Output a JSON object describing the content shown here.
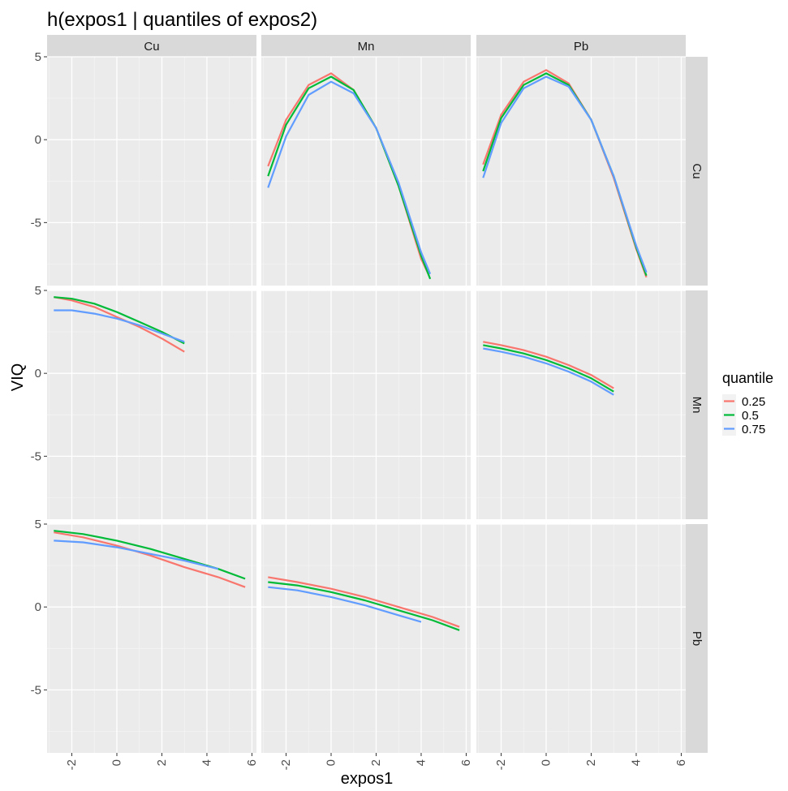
{
  "chart_data": {
    "type": "line",
    "title": "h(expos1 | quantiles of expos2)",
    "xlabel": "expos1",
    "ylabel": "VIQ",
    "xlim": [
      -3.1,
      6.2
    ],
    "ylim": [
      -8.8,
      5.0
    ],
    "x_ticks": [
      -2,
      0,
      2,
      4,
      6
    ],
    "x_tick_labels": [
      "-2",
      "0",
      "2",
      "4",
      "6"
    ],
    "y_ticks": [
      5,
      0,
      -5
    ],
    "y_tick_labels": [
      "5",
      "0",
      "-5"
    ],
    "column_labels": [
      "Cu",
      "Mn",
      "Pb"
    ],
    "row_labels": [
      "Cu",
      "Mn",
      "Pb"
    ],
    "grid": true,
    "legend": {
      "title": "quantile",
      "position": "right",
      "entries": [
        {
          "name": "0.25",
          "color": "#F8766D"
        },
        {
          "name": "0.5",
          "color": "#00BA38"
        },
        {
          "name": "0.75",
          "color": "#619CFF"
        }
      ]
    },
    "panels": [
      {
        "row": "Cu",
        "col": "Mn",
        "series": [
          {
            "name": "0.25",
            "color": "#F8766D",
            "x": [
              -2.8,
              -2.0,
              -1.0,
              0.0,
              1.0,
              2.0,
              3.0,
              4.0,
              4.35
            ],
            "y": [
              -1.6,
              1.2,
              3.3,
              4.0,
              3.0,
              0.7,
              -2.8,
              -7.2,
              -8.2
            ]
          },
          {
            "name": "0.5",
            "color": "#00BA38",
            "x": [
              -2.8,
              -2.0,
              -1.0,
              0.0,
              1.0,
              2.0,
              3.0,
              4.0,
              4.4
            ],
            "y": [
              -2.2,
              0.9,
              3.1,
              3.8,
              3.0,
              0.7,
              -2.8,
              -7.0,
              -8.4
            ]
          },
          {
            "name": "0.75",
            "color": "#619CFF",
            "x": [
              -2.8,
              -2.0,
              -1.0,
              0.0,
              1.0,
              2.0,
              3.0,
              4.0,
              4.4
            ],
            "y": [
              -2.9,
              0.2,
              2.7,
              3.5,
              2.8,
              0.7,
              -2.6,
              -6.8,
              -8.1
            ]
          }
        ]
      },
      {
        "row": "Cu",
        "col": "Pb",
        "series": [
          {
            "name": "0.25",
            "color": "#F8766D",
            "x": [
              -2.8,
              -2.0,
              -1.0,
              0.0,
              1.0,
              2.0,
              3.0,
              4.0,
              4.45
            ],
            "y": [
              -1.5,
              1.5,
              3.5,
              4.2,
              3.4,
              1.2,
              -2.3,
              -6.6,
              -8.3
            ]
          },
          {
            "name": "0.5",
            "color": "#00BA38",
            "x": [
              -2.8,
              -2.0,
              -1.0,
              0.0,
              1.0,
              2.0,
              3.0,
              4.0,
              4.45
            ],
            "y": [
              -1.9,
              1.3,
              3.3,
              4.0,
              3.3,
              1.2,
              -2.2,
              -6.5,
              -8.2
            ]
          },
          {
            "name": "0.75",
            "color": "#619CFF",
            "x": [
              -2.8,
              -2.0,
              -1.0,
              0.0,
              1.0,
              2.0,
              3.0,
              4.0,
              4.45
            ],
            "y": [
              -2.3,
              1.0,
              3.1,
              3.8,
              3.2,
              1.2,
              -2.2,
              -6.4,
              -8.0
            ]
          }
        ]
      },
      {
        "row": "Mn",
        "col": "Cu",
        "series": [
          {
            "name": "0.25",
            "color": "#F8766D",
            "x": [
              -2.8,
              -2.0,
              -1.0,
              0.0,
              1.0,
              2.0,
              3.0
            ],
            "y": [
              4.6,
              4.4,
              4.0,
              3.4,
              2.8,
              2.1,
              1.3
            ]
          },
          {
            "name": "0.5",
            "color": "#00BA38",
            "x": [
              -2.8,
              -2.0,
              -1.0,
              0.0,
              1.0,
              2.0,
              3.0
            ],
            "y": [
              4.6,
              4.5,
              4.2,
              3.7,
              3.1,
              2.5,
              1.8
            ]
          },
          {
            "name": "0.75",
            "color": "#619CFF",
            "x": [
              -2.8,
              -2.0,
              -1.0,
              0.0,
              1.0,
              2.0,
              3.0
            ],
            "y": [
              3.8,
              3.8,
              3.6,
              3.3,
              2.9,
              2.4,
              1.9
            ]
          }
        ]
      },
      {
        "row": "Mn",
        "col": "Pb",
        "series": [
          {
            "name": "0.25",
            "color": "#F8766D",
            "x": [
              -2.8,
              -2.0,
              -1.0,
              0.0,
              1.0,
              2.0,
              3.0
            ],
            "y": [
              1.9,
              1.7,
              1.4,
              1.0,
              0.5,
              -0.1,
              -0.9
            ]
          },
          {
            "name": "0.5",
            "color": "#00BA38",
            "x": [
              -2.8,
              -2.0,
              -1.0,
              0.0,
              1.0,
              2.0,
              3.0
            ],
            "y": [
              1.7,
              1.5,
              1.2,
              0.8,
              0.3,
              -0.3,
              -1.1
            ]
          },
          {
            "name": "0.75",
            "color": "#619CFF",
            "x": [
              -2.8,
              -2.0,
              -1.0,
              0.0,
              1.0,
              2.0,
              3.0
            ],
            "y": [
              1.5,
              1.3,
              1.0,
              0.6,
              0.1,
              -0.5,
              -1.3
            ]
          }
        ]
      },
      {
        "row": "Pb",
        "col": "Cu",
        "series": [
          {
            "name": "0.25",
            "color": "#F8766D",
            "x": [
              -2.8,
              -1.5,
              0.0,
              1.5,
              3.0,
              4.5,
              5.7
            ],
            "y": [
              4.5,
              4.2,
              3.7,
              3.1,
              2.4,
              1.8,
              1.2
            ]
          },
          {
            "name": "0.5",
            "color": "#00BA38",
            "x": [
              -2.8,
              -1.5,
              0.0,
              1.5,
              3.0,
              4.5,
              5.7
            ],
            "y": [
              4.6,
              4.4,
              4.0,
              3.5,
              2.9,
              2.3,
              1.7
            ]
          },
          {
            "name": "0.75",
            "color": "#619CFF",
            "x": [
              -2.8,
              -1.5,
              0.0,
              1.5,
              3.0,
              4.5
            ],
            "y": [
              4.0,
              3.9,
              3.6,
              3.2,
              2.8,
              2.3
            ]
          }
        ]
      },
      {
        "row": "Pb",
        "col": "Mn",
        "series": [
          {
            "name": "0.25",
            "color": "#F8766D",
            "x": [
              -2.8,
              -1.5,
              0.0,
              1.5,
              3.0,
              4.5,
              5.7
            ],
            "y": [
              1.8,
              1.5,
              1.1,
              0.6,
              0.0,
              -0.6,
              -1.2
            ]
          },
          {
            "name": "0.5",
            "color": "#00BA38",
            "x": [
              -2.8,
              -1.5,
              0.0,
              1.5,
              3.0,
              4.5,
              5.7
            ],
            "y": [
              1.5,
              1.3,
              0.9,
              0.4,
              -0.2,
              -0.8,
              -1.4
            ]
          },
          {
            "name": "0.75",
            "color": "#619CFF",
            "x": [
              -2.8,
              -1.5,
              0.0,
              1.5,
              3.0,
              4.0
            ],
            "y": [
              1.2,
              1.0,
              0.6,
              0.1,
              -0.5,
              -0.9
            ]
          }
        ]
      }
    ]
  }
}
